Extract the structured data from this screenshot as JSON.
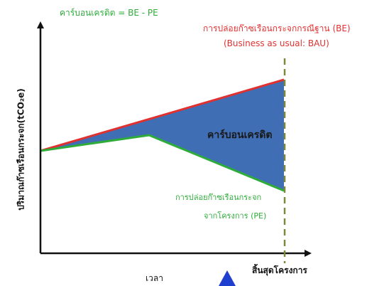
{
  "colors": {
    "baseline": "#e03030",
    "project": "#2eac3a",
    "credit_area": "#3f6eb5",
    "axis": "#111111",
    "end_line": "#7a8a3a",
    "cursor": "#1f3fd0"
  },
  "labels": {
    "formula": "คาร์บอนเครดิต = BE - PE",
    "baseline_line1": "การปล่อยก๊าซเรือนกระจกกรณีฐาน (BE)",
    "baseline_line2": "(Business as usual: BAU)",
    "credit_area": "คาร์บอนเครดิต",
    "project_line1": "การปล่อยก๊าซเรือนกระจก",
    "project_line2": "จากโครงการ (PE)",
    "x_axis": "เวลา",
    "project_end": "สิ้นสุดโครงการ",
    "y_axis": "ปริมาณก๊าซเรือนกระจก(tCO₂e)"
  }
}
